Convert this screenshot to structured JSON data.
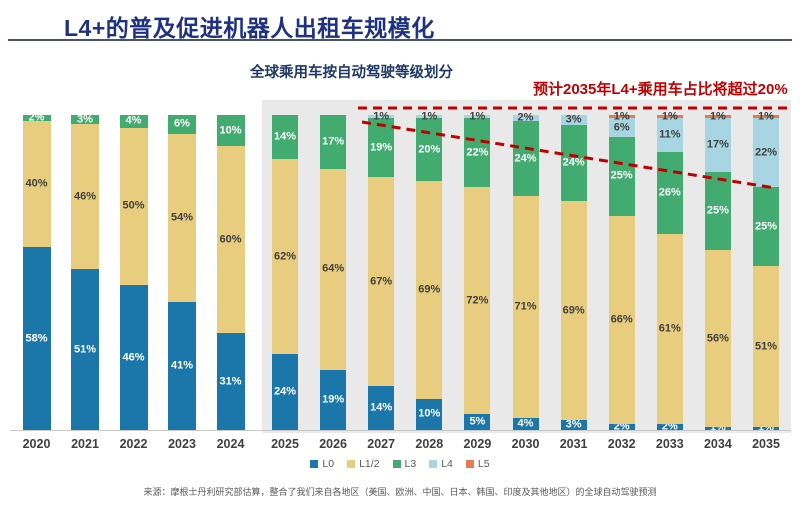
{
  "title": "L4+的普及促进机器人出租车规模化",
  "subtitle": "全球乘用车按自动驾驶等级划分",
  "annotation": "预计2035年L4+乘用车占比将超过20%",
  "source": "来源：摩根士丹利研究部估算，整合了我们来自各地区（美国、欧洲、中国、日本、韩国、印度及其他地区）的全球自动驾驶预测",
  "colors": {
    "title_navy": "#1F3282",
    "subtitle_navy": "#1F3864",
    "annotation_red": "#C00000",
    "forecast_panel_gray": "#E9E9E9",
    "label_dark": "#404040",
    "label_light": "#FFFFFF"
  },
  "chart_data": {
    "type": "bar",
    "stacked": true,
    "unit": "%",
    "title": "全球乘用车按自动驾驶等级划分",
    "categories": [
      "2020",
      "2021",
      "2022",
      "2023",
      "2024",
      "2025",
      "2026",
      "2027",
      "2028",
      "2029",
      "2030",
      "2031",
      "2032",
      "2033",
      "2034",
      "2035"
    ],
    "forecast_start_category": "2025",
    "ylim": [
      0,
      100
    ],
    "grid": false,
    "legend_position": "bottom",
    "series": [
      {
        "name": "L0",
        "color": "#1B77A9",
        "label_color": "#FFFFFF",
        "values": [
          58,
          51,
          46,
          41,
          31,
          24,
          19,
          14,
          10,
          5,
          4,
          3,
          2,
          2,
          1,
          1
        ]
      },
      {
        "name": "L1/2",
        "color": "#E9CD7E",
        "label_color": "#404040",
        "values": [
          40,
          46,
          50,
          54,
          60,
          62,
          64,
          67,
          69,
          72,
          71,
          69,
          66,
          61,
          56,
          51
        ]
      },
      {
        "name": "L3",
        "color": "#42AB6F",
        "label_color": "#FFFFFF",
        "values": [
          2,
          3,
          4,
          6,
          10,
          14,
          17,
          19,
          20,
          22,
          24,
          24,
          25,
          26,
          25,
          25
        ]
      },
      {
        "name": "L4",
        "color": "#A8D5E2",
        "label_color": "#404040",
        "values": [
          null,
          null,
          null,
          null,
          null,
          null,
          null,
          1,
          1,
          1,
          2,
          3,
          6,
          11,
          17,
          22
        ]
      },
      {
        "name": "L5",
        "color": "#E87B52",
        "label_color": "#404040",
        "values": [
          null,
          null,
          null,
          null,
          null,
          null,
          null,
          null,
          null,
          null,
          null,
          null,
          1,
          1,
          1,
          1
        ]
      }
    ],
    "annotation_text": "预计2035年L4+乘用车占比将超过20%"
  }
}
